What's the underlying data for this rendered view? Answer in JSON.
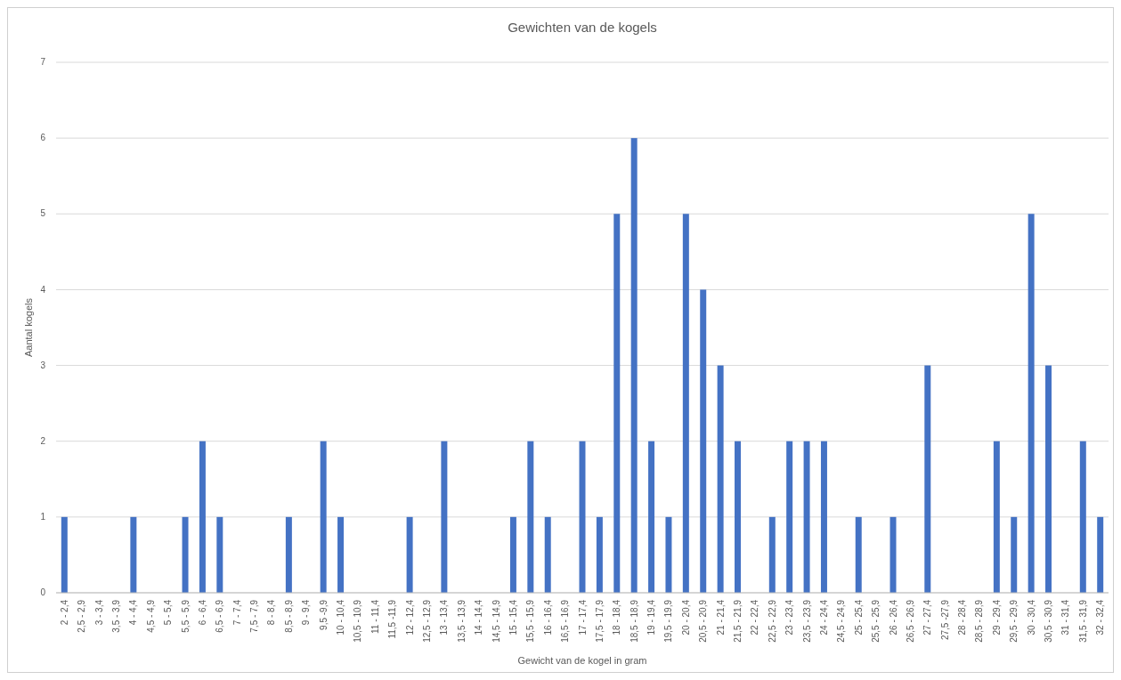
{
  "chart_data": {
    "type": "bar",
    "title": "Gewichten van de kogels",
    "xlabel": "Gewicht van de kogel in gram",
    "ylabel": "Aantal kogels",
    "categories": [
      "2 - 2,4",
      "2,5 - 2,9",
      "3 - 3,4",
      "3,5 - 3,9",
      "4 - 4,4",
      "4,5 - 4,9",
      "5 - 5,4",
      "5,5 - 5,9",
      "6 - 6,4",
      "6,5 - 6,9",
      "7 - 7,4",
      "7,5 - 7,9",
      "8 - 8,4",
      "8,5 - 8,9",
      "9 - 9,4",
      "9,5 -9,9",
      "10 - 10,4",
      "10,5 - 10,9",
      "11 - 11,4",
      "11,5 -11,9",
      "12 - 12,4",
      "12,5 - 12,9",
      "13 - 13,4",
      "13,5 - 13,9",
      "14 - 14,4",
      "14,5 - 14,9",
      "15 - 15,4",
      "15,5 - 15,9",
      "16 - 16,4",
      "16,5 - 16,9",
      "17 - 17,4",
      "17,5 - 17,9",
      "18 - 18,4",
      "18,5 - 18,9",
      "19 - 19,4",
      "19,5 - 19,9",
      "20 - 20,4",
      "20,5 - 20,9",
      "21 - 21,4",
      "21,5 - 21,9",
      "22 - 22,4",
      "22,5 - 22,9",
      "23 - 23,4",
      "23,5 - 23,9",
      "24 - 24,4",
      "24,5 - 24,9",
      "25 - 25,4",
      "25,5 - 25,9",
      "26 - 26,4",
      "26,5 - 26,9",
      "27 - 27,4",
      "27,5 -27,9",
      "28 - 28,4",
      "28,5 - 28,9",
      "29 - 29,4",
      "29,5 - 29,9",
      "30 - 30,4",
      "30,5 - 30,9",
      "31 - 31,4",
      "31,5 - 31,9",
      "32 - 32,4"
    ],
    "values": [
      1,
      0,
      0,
      0,
      1,
      0,
      0,
      1,
      2,
      1,
      0,
      0,
      0,
      1,
      0,
      2,
      1,
      0,
      0,
      0,
      1,
      0,
      2,
      0,
      0,
      0,
      1,
      2,
      1,
      0,
      2,
      1,
      5,
      6,
      2,
      1,
      5,
      4,
      3,
      2,
      0,
      1,
      2,
      2,
      2,
      0,
      1,
      0,
      1,
      0,
      3,
      0,
      0,
      0,
      2,
      1,
      5,
      3,
      0,
      2,
      1
    ],
    "color": "#4472c4",
    "ylim": [
      0,
      7
    ],
    "yticks": [
      0,
      1,
      2,
      3,
      4,
      5,
      6,
      7
    ],
    "grid": "y"
  }
}
